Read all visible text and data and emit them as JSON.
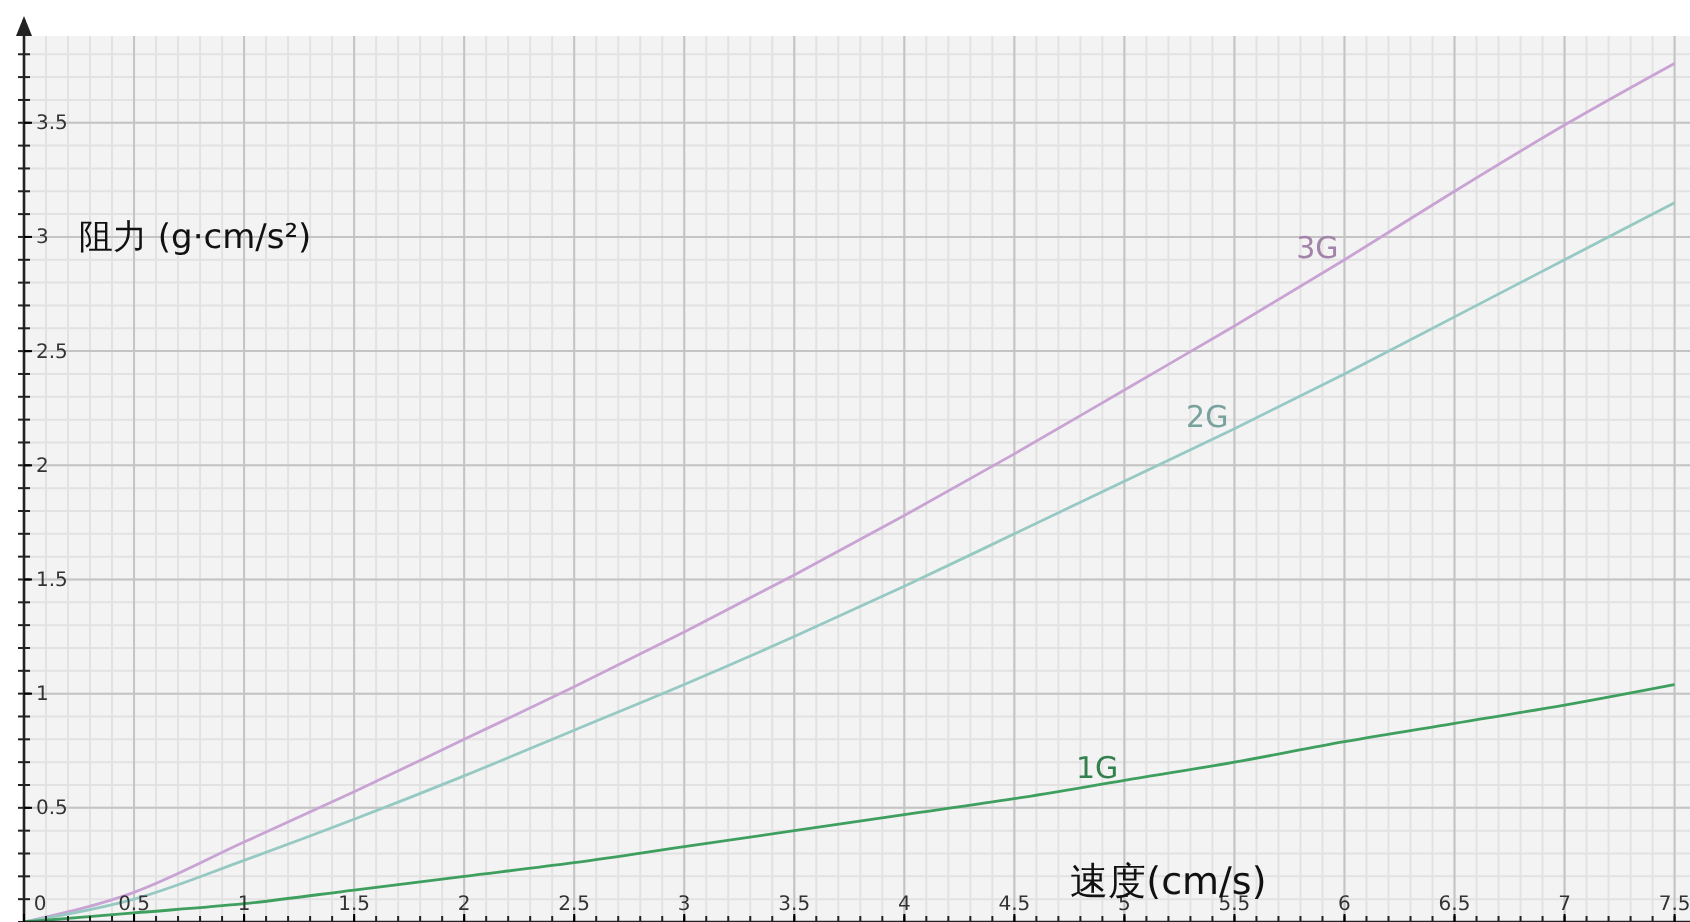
{
  "chart_data": {
    "type": "line",
    "xlabel": "速度(cm/s)",
    "ylabel": "阻力 (g·cm/s²)",
    "x": [
      0,
      0.5,
      1,
      1.5,
      2,
      2.5,
      3,
      3.5,
      4,
      4.5,
      5,
      5.5,
      6,
      6.5,
      7,
      7.5
    ],
    "series": [
      {
        "name": "3G",
        "color": "#c9a3d3",
        "values": [
          0,
          0.13,
          0.35,
          0.57,
          0.8,
          1.03,
          1.27,
          1.52,
          1.78,
          2.05,
          2.33,
          2.61,
          2.9,
          3.2,
          3.49,
          3.76
        ]
      },
      {
        "name": "2G",
        "color": "#95c9c2",
        "values": [
          0,
          0.1,
          0.27,
          0.45,
          0.64,
          0.84,
          1.04,
          1.25,
          1.47,
          1.7,
          1.93,
          2.16,
          2.4,
          2.65,
          2.9,
          3.15
        ]
      },
      {
        "name": "1G",
        "color": "#3f9f5f",
        "values": [
          0,
          0.04,
          0.08,
          0.14,
          0.2,
          0.26,
          0.33,
          0.4,
          0.47,
          0.54,
          0.62,
          0.7,
          0.79,
          0.87,
          0.95,
          1.04
        ]
      }
    ],
    "xlim": [
      0,
      7.57
    ],
    "ylim": [
      0,
      3.88
    ],
    "xticks": [
      0,
      0.5,
      1,
      1.5,
      2,
      2.5,
      3,
      3.5,
      4,
      4.5,
      5,
      5.5,
      6,
      6.5,
      7,
      7.5
    ],
    "yticks": [
      0.5,
      1,
      1.5,
      2,
      2.5,
      3,
      3.5
    ],
    "grid": true,
    "marker": "none",
    "line_style": "solid"
  }
}
